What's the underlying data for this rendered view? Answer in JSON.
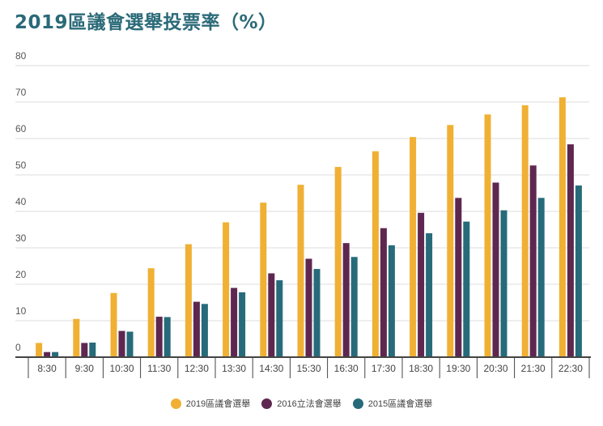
{
  "chart_data": {
    "type": "bar",
    "title": "2019區議會選舉投票率（%）",
    "xlabel": "",
    "ylabel": "",
    "ylim": [
      0,
      80
    ],
    "yticks": [
      0,
      10,
      20,
      30,
      40,
      50,
      60,
      70,
      80
    ],
    "grid": true,
    "legend_position": "bottom",
    "categories": [
      "8:30",
      "9:30",
      "10:30",
      "11:30",
      "12:30",
      "13:30",
      "14:30",
      "15:30",
      "16:30",
      "17:30",
      "18:30",
      "19:30",
      "20:30",
      "21:30",
      "22:30"
    ],
    "series": [
      {
        "name": "2019區議會選舉",
        "color": "#f0b034",
        "values": [
          3.9,
          10.5,
          17.6,
          24.4,
          31.0,
          37.0,
          42.4,
          47.3,
          52.2,
          56.5,
          60.4,
          63.7,
          66.6,
          69.1,
          71.3
        ]
      },
      {
        "name": "2016立法會選舉",
        "color": "#5e2750",
        "values": [
          1.4,
          3.9,
          7.2,
          11.1,
          15.2,
          19.0,
          23.0,
          27.0,
          31.3,
          35.4,
          39.6,
          43.7,
          47.9,
          52.6,
          58.4
        ]
      },
      {
        "name": "2015區議會選舉",
        "color": "#276b7a",
        "values": [
          1.4,
          4.0,
          7.0,
          11.0,
          14.6,
          17.8,
          21.1,
          24.2,
          27.5,
          30.7,
          34.0,
          37.2,
          40.3,
          43.7,
          47.1
        ]
      }
    ]
  }
}
